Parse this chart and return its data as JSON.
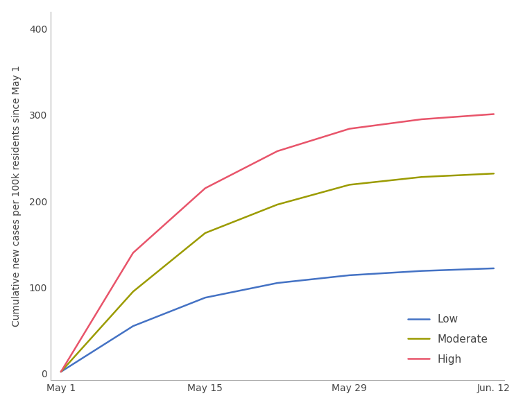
{
  "title": "",
  "ylabel": "Cumulative new cases per 100k residents since May 1",
  "xlabel": "",
  "x_tick_labels": [
    "May 1",
    "May 15",
    "May 29",
    "Jun. 12"
  ],
  "x_tick_positions": [
    0,
    14,
    28,
    42
  ],
  "ylim": [
    -8,
    420
  ],
  "xlim": [
    -1,
    43
  ],
  "yticks": [
    0,
    100,
    200,
    300,
    400
  ],
  "series": {
    "Low": {
      "color": "#4472C4",
      "x": [
        0,
        7,
        14,
        21,
        28,
        35,
        42
      ],
      "y": [
        2,
        55,
        88,
        105,
        114,
        119,
        122
      ]
    },
    "Moderate": {
      "color": "#9B9B00",
      "x": [
        0,
        7,
        14,
        21,
        28,
        35,
        42
      ],
      "y": [
        2,
        95,
        163,
        196,
        219,
        228,
        232
      ]
    },
    "High": {
      "color": "#E8546A",
      "x": [
        0,
        7,
        14,
        21,
        28,
        35,
        42
      ],
      "y": [
        2,
        140,
        215,
        258,
        284,
        295,
        301
      ]
    }
  },
  "legend_order": [
    "Low",
    "Moderate",
    "High"
  ],
  "legend_loc": "lower right",
  "background_color": "#ffffff",
  "spine_color": "#aaaaaa",
  "tick_color": "#444444",
  "label_fontsize": 10,
  "legend_fontsize": 11,
  "linewidth": 1.8
}
